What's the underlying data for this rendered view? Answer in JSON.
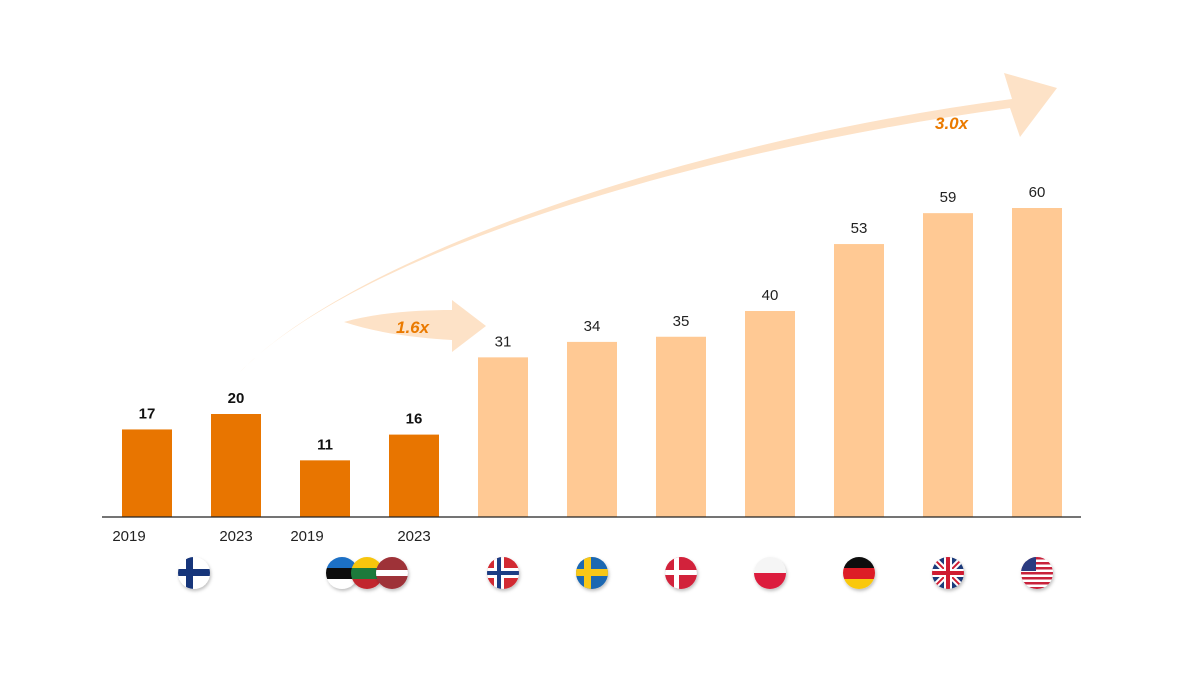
{
  "chart_data": {
    "type": "bar",
    "title": "",
    "xlabel": "",
    "ylabel": "",
    "ylim": [
      0,
      60
    ],
    "grid": false,
    "categories": [
      "Finland 2019",
      "Finland 2023",
      "Baltics 2019",
      "Baltics 2023",
      "Norway",
      "Sweden",
      "Denmark",
      "Poland",
      "Germany",
      "United Kingdom",
      "United States"
    ],
    "values": [
      17,
      20,
      11,
      16,
      31,
      34,
      35,
      40,
      53,
      59,
      60
    ],
    "value_labels": [
      "17",
      "20",
      "11",
      "16",
      "31",
      "34",
      "35",
      "40",
      "53",
      "59",
      "60"
    ],
    "year_labels": [
      "2019",
      "2023",
      "2019",
      "2023",
      "",
      "",
      "",
      "",
      "",
      "",
      ""
    ],
    "highlighted": [
      true,
      true,
      true,
      true,
      false,
      false,
      false,
      false,
      false,
      false,
      false
    ],
    "colors": {
      "highlight": "#e87500",
      "other": "#ffc994",
      "arrow": "#fde2c7",
      "annotation": "#ea7a00",
      "axis": "#222222"
    },
    "flag_icons": [
      {
        "name": "finland-flag-icon",
        "group": "finland"
      },
      {
        "name": "estonia-flag-icon",
        "group": "baltics"
      },
      {
        "name": "lithuania-flag-icon",
        "group": "baltics"
      },
      {
        "name": "latvia-flag-icon",
        "group": "baltics"
      },
      {
        "name": "norway-flag-icon",
        "group": "norway"
      },
      {
        "name": "sweden-flag-icon",
        "group": "sweden"
      },
      {
        "name": "denmark-flag-icon",
        "group": "denmark"
      },
      {
        "name": "poland-flag-icon",
        "group": "poland"
      },
      {
        "name": "germany-flag-icon",
        "group": "germany"
      },
      {
        "name": "uk-flag-icon",
        "group": "uk"
      },
      {
        "name": "usa-flag-icon",
        "group": "usa"
      }
    ],
    "annotations": [
      {
        "text": "1.6x",
        "kind": "short-arrow"
      },
      {
        "text": "3.0x",
        "kind": "long-arrow"
      }
    ]
  }
}
